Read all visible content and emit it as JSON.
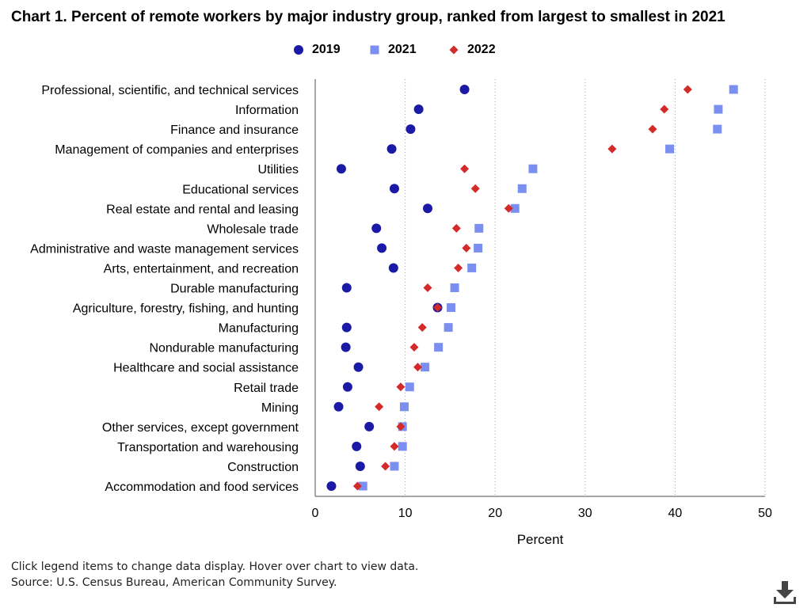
{
  "chart_data": {
    "type": "scatter",
    "title": "Chart 1. Percent of remote workers by major industry group, ranked from largest to smallest in 2021",
    "xlabel": "Percent",
    "ylabel": "",
    "xlim": [
      0,
      50
    ],
    "xticks": [
      "0",
      "10",
      "20",
      "30",
      "40",
      "50"
    ],
    "grid": "vertical dotted",
    "legend_placement": "top-center",
    "categories": [
      "Professional, scientific, and technical services",
      "Information",
      "Finance and insurance",
      "Management of companies and enterprises",
      "Utilities",
      "Educational services",
      "Real estate and rental and leasing",
      "Wholesale trade",
      "Administrative and waste management services",
      "Arts, entertainment, and recreation",
      "Durable manufacturing",
      "Agriculture, forestry, fishing, and hunting",
      "Manufacturing",
      "Nondurable manufacturing",
      "Healthcare and social assistance",
      "Retail trade",
      "Mining",
      "Other services, except government",
      "Transportation and warehousing",
      "Construction",
      "Accommodation and food services"
    ],
    "series": [
      {
        "name": "2019",
        "marker": "circle",
        "color": "#1a1aa6",
        "values": [
          16.6,
          11.5,
          10.6,
          8.5,
          2.9,
          8.8,
          12.5,
          6.8,
          7.4,
          8.7,
          3.5,
          13.6,
          3.5,
          3.4,
          4.8,
          3.6,
          2.6,
          6.0,
          4.6,
          5.0,
          1.8
        ]
      },
      {
        "name": "2021",
        "marker": "square",
        "color": "#7b8ff0",
        "values": [
          46.5,
          44.8,
          44.7,
          39.4,
          24.2,
          23.0,
          22.2,
          18.2,
          18.1,
          17.4,
          15.5,
          15.1,
          14.8,
          13.7,
          12.2,
          10.5,
          9.9,
          9.7,
          9.7,
          8.8,
          5.3
        ]
      },
      {
        "name": "2022",
        "marker": "diamond",
        "color": "#d42a2a",
        "values": [
          41.4,
          38.8,
          37.5,
          33.0,
          16.6,
          17.8,
          21.5,
          15.7,
          16.8,
          15.9,
          12.5,
          13.6,
          11.9,
          11.0,
          11.4,
          9.5,
          7.1,
          9.5,
          8.8,
          7.8,
          4.7
        ]
      }
    ]
  },
  "footnote": {
    "line1": "Click legend items to change data display. Hover over chart to view data.",
    "line2": "Source: U.S. Census Bureau, American Community Survey."
  },
  "download": {
    "icon": "download-icon"
  }
}
